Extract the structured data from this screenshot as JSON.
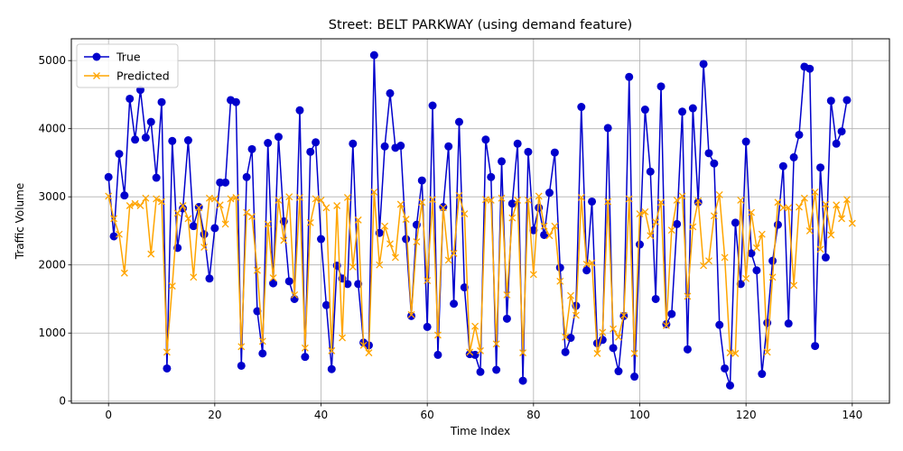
{
  "chart_data": {
    "type": "line",
    "title": "Street: BELT PARKWAY (using demand feature)",
    "xlabel": "Time Index",
    "ylabel": "Traffic Volume",
    "xlim": [
      -7,
      147
    ],
    "ylim": [
      -30,
      5320
    ],
    "xticks": [
      0,
      20,
      40,
      60,
      80,
      100,
      120,
      140
    ],
    "yticks": [
      0,
      1000,
      2000,
      3000,
      4000,
      5000
    ],
    "grid": true,
    "legend_position": "top-left",
    "series": [
      {
        "name": "True",
        "color": "#0000cc",
        "marker": "circle",
        "values": [
          3290,
          2420,
          3630,
          3020,
          4440,
          3840,
          4570,
          3870,
          4100,
          3280,
          4390,
          480,
          3820,
          2250,
          2830,
          3830,
          2570,
          2850,
          2450,
          1800,
          2540,
          3210,
          3210,
          4420,
          4390,
          520,
          3290,
          3700,
          1320,
          700,
          3790,
          1730,
          3880,
          2640,
          1760,
          1500,
          4270,
          650,
          3660,
          3800,
          2380,
          1410,
          470,
          1990,
          1800,
          1720,
          3780,
          1720,
          860,
          820,
          5080,
          2470,
          3740,
          4520,
          3720,
          3750,
          2380,
          1250,
          2590,
          3240,
          1090,
          4340,
          680,
          2850,
          3740,
          1430,
          4100,
          1670,
          690,
          680,
          430,
          3840,
          3290,
          460,
          3520,
          1210,
          2900,
          3780,
          300,
          3660,
          2510,
          2840,
          2440,
          3060,
          3650,
          1960,
          720,
          930,
          1400,
          4320,
          1920,
          2930,
          850,
          900,
          4010,
          780,
          440,
          1250,
          4760,
          360,
          2300,
          4280,
          3370,
          1500,
          4620,
          1130,
          1280,
          2600,
          4250,
          760,
          4300,
          2920,
          4950,
          3640,
          3490,
          1120,
          480,
          230,
          2620,
          1720,
          3810,
          2170,
          1920,
          400,
          1150,
          2060,
          2590,
          3450,
          1140,
          3580,
          3910,
          4910,
          4880,
          810,
          3430,
          2110,
          4410,
          3780,
          3960,
          4420
        ]
      },
      {
        "name": "Predicted",
        "color": "#ffa500",
        "marker": "x",
        "values": [
          3010,
          2680,
          2450,
          1880,
          2870,
          2900,
          2870,
          2980,
          2160,
          2970,
          2930,
          720,
          1690,
          2760,
          2870,
          2680,
          1820,
          2840,
          2260,
          2980,
          2970,
          2880,
          2600,
          2970,
          2990,
          800,
          2770,
          2710,
          1920,
          880,
          2600,
          1810,
          2950,
          2360,
          3000,
          1560,
          2990,
          780,
          2620,
          2970,
          2950,
          2840,
          740,
          2870,
          930,
          2990,
          1970,
          2660,
          820,
          710,
          3070,
          2000,
          2570,
          2310,
          2110,
          2890,
          2670,
          1270,
          2340,
          2920,
          1770,
          2960,
          970,
          2840,
          2070,
          2170,
          3020,
          2750,
          720,
          1100,
          740,
          2960,
          2950,
          840,
          2980,
          1560,
          2690,
          2950,
          710,
          2950,
          1860,
          3010,
          2570,
          2430,
          2570,
          1760,
          940,
          1550,
          1260,
          2990,
          2010,
          2030,
          700,
          1010,
          2930,
          1060,
          940,
          1260,
          2970,
          700,
          2750,
          2780,
          2430,
          2630,
          2920,
          1110,
          2510,
          2950,
          3010,
          1540,
          2560,
          2940,
          1990,
          2060,
          2720,
          3030,
          2110,
          710,
          700,
          2950,
          1800,
          2770,
          2250,
          2450,
          720,
          1820,
          2920,
          2840,
          2840,
          1700,
          2850,
          2980,
          2500,
          3070,
          2230,
          2890,
          2440,
          2880,
          2680,
          2960,
          2610
        ]
      }
    ]
  }
}
